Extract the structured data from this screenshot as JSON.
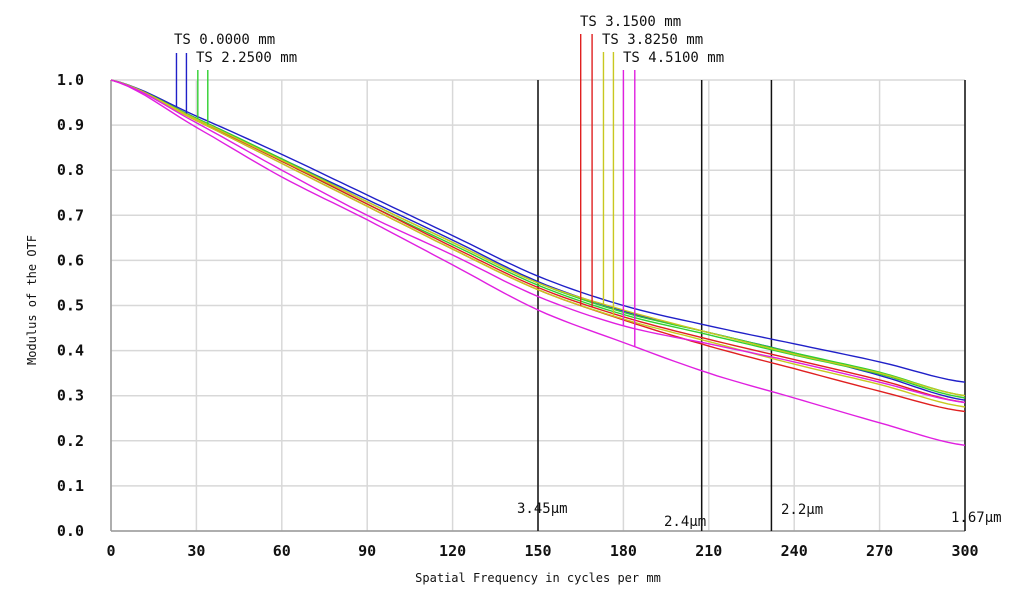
{
  "chart_data": {
    "type": "line",
    "xlabel": "Spatial Frequency in cycles per mm",
    "ylabel": "Modulus of the OTF",
    "xlim": [
      0,
      300
    ],
    "ylim": [
      0,
      1.0
    ],
    "x_ticks": [
      "0",
      "30",
      "60",
      "90",
      "120",
      "150",
      "180",
      "210",
      "240",
      "270",
      "300"
    ],
    "y_ticks": [
      "0.0",
      "0.1",
      "0.2",
      "0.3",
      "0.4",
      "0.5",
      "0.6",
      "0.7",
      "0.8",
      "0.9",
      "1.0"
    ],
    "grid": true,
    "x": [
      0,
      30,
      60,
      90,
      120,
      150,
      180,
      210,
      240,
      270,
      300
    ],
    "fields": [
      {
        "name": "TS 0.0000 mm",
        "color": "#2020c8",
        "marker_x": [
          23,
          26.5
        ],
        "series": [
          {
            "values": [
              1,
              0.92,
              0.835,
              0.745,
              0.655,
              0.565,
              0.5,
              0.455,
              0.415,
              0.375,
              0.33
            ]
          },
          {
            "values": [
              1,
              0.915,
              0.825,
              0.735,
              0.645,
              0.553,
              0.488,
              0.44,
              0.395,
              0.345,
              0.29
            ]
          }
        ]
      },
      {
        "name": "TS 2.2500 mm",
        "color": "#30d030",
        "marker_x": [
          30.5,
          34
        ],
        "series": [
          {
            "values": [
              1,
              0.915,
              0.825,
              0.73,
              0.64,
              0.55,
              0.485,
              0.44,
              0.395,
              0.352,
              0.3
            ]
          },
          {
            "values": [
              1,
              0.913,
              0.82,
              0.725,
              0.635,
              0.545,
              0.48,
              0.435,
              0.39,
              0.348,
              0.295
            ]
          }
        ]
      },
      {
        "name": "TS 3.1500 mm",
        "color": "#e02020",
        "marker_x": [
          165,
          169
        ],
        "series": [
          {
            "values": [
              1,
              0.91,
              0.815,
              0.72,
              0.625,
              0.535,
              0.468,
              0.41,
              0.36,
              0.31,
              0.265
            ]
          },
          {
            "values": [
              1,
              0.912,
              0.82,
              0.725,
              0.63,
              0.54,
              0.475,
              0.425,
              0.38,
              0.335,
              0.285
            ]
          }
        ]
      },
      {
        "name": "TS 3.8250 mm",
        "color": "#c8c820",
        "marker_x": [
          173,
          176.5
        ],
        "series": [
          {
            "values": [
              1,
              0.913,
              0.822,
              0.73,
              0.64,
              0.55,
              0.49,
              0.44,
              0.392,
              0.35,
              0.3
            ]
          },
          {
            "values": [
              1,
              0.91,
              0.815,
              0.72,
              0.625,
              0.535,
              0.47,
              0.42,
              0.37,
              0.325,
              0.275
            ]
          }
        ]
      },
      {
        "name": "TS 4.5100 mm",
        "color": "#e020e0",
        "marker_x": [
          180,
          184
        ],
        "series": [
          {
            "values": [
              1,
              0.905,
              0.8,
              0.7,
              0.612,
              0.52,
              0.455,
              0.415,
              0.375,
              0.33,
              0.285
            ]
          },
          {
            "values": [
              1,
              0.895,
              0.785,
              0.69,
              0.59,
              0.49,
              0.418,
              0.35,
              0.295,
              0.24,
              0.19
            ]
          }
        ]
      }
    ],
    "vlines": [
      {
        "x": 150,
        "label": "3.45µm"
      },
      {
        "x": 207.5,
        "label": "2.4µm"
      },
      {
        "x": 232,
        "label": "2.2µm"
      },
      {
        "x": 300,
        "label": "1.67µm"
      }
    ]
  }
}
